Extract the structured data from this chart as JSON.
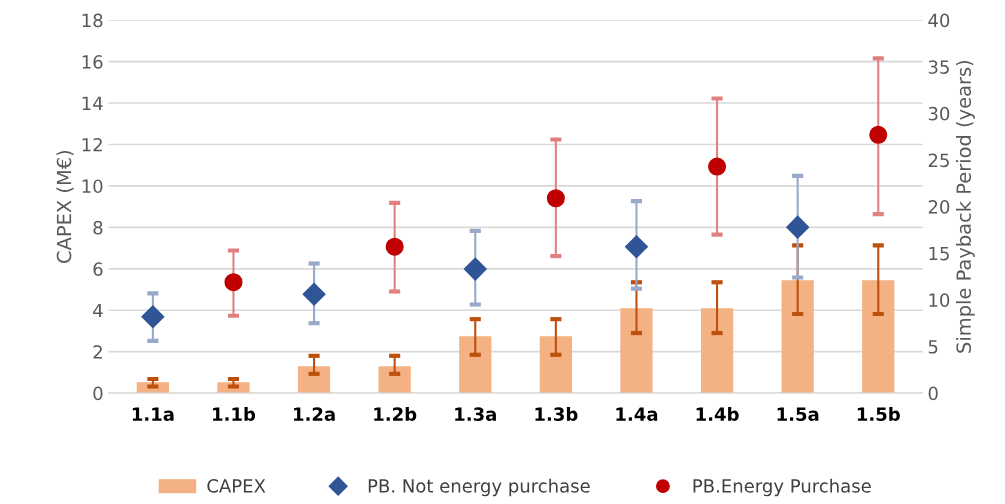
{
  "chart_data": {
    "type": "bar",
    "ylabel": "CAPEX (M€)",
    "y2label": "Simple Payback Period (years)",
    "categories": [
      "1.1a",
      "1.1b",
      "1.2a",
      "1.2b",
      "1.3a",
      "1.3b",
      "1.4a",
      "1.4b",
      "1.5a",
      "1.5b"
    ],
    "series": [
      {
        "name": "CAPEX",
        "color": "#f4b183",
        "values": [
          0.53,
          0.53,
          1.3,
          1.3,
          2.75,
          2.75,
          4.1,
          4.1,
          5.45,
          5.45
        ],
        "errors": [
          [
            0.32,
            0.68
          ],
          [
            0.32,
            0.68
          ],
          [
            0.93,
            1.8
          ],
          [
            0.93,
            1.8
          ],
          [
            1.85,
            3.57
          ],
          [
            1.85,
            3.57
          ],
          [
            2.9,
            5.35
          ],
          [
            2.9,
            5.35
          ],
          [
            3.82,
            7.13
          ],
          [
            3.82,
            7.13
          ]
        ]
      },
      {
        "name": "PB. Not energy purchase",
        "type": "scatter",
        "axis": "y2",
        "marker": "diamond",
        "color": "#2f5597",
        "values": [
          8.2,
          null,
          10.6,
          null,
          13.3,
          null,
          15.7,
          null,
          17.8,
          null
        ],
        "errors": [
          [
            5.6,
            10.7
          ],
          null,
          [
            7.5,
            13.9
          ],
          null,
          [
            9.5,
            17.4
          ],
          null,
          [
            11.2,
            20.6
          ],
          null,
          [
            12.4,
            23.3
          ],
          null
        ]
      },
      {
        "name": "PB.Energy Purchase",
        "type": "scatter",
        "axis": "y2",
        "marker": "circle",
        "color": "#c00000",
        "values": [
          null,
          11.9,
          null,
          15.7,
          null,
          20.9,
          null,
          24.3,
          null,
          27.7
        ],
        "errors": [
          null,
          [
            8.3,
            15.3
          ],
          null,
          [
            10.9,
            20.4
          ],
          null,
          [
            14.7,
            27.2
          ],
          null,
          [
            17.0,
            31.6
          ],
          null,
          [
            19.2,
            35.9
          ]
        ]
      }
    ],
    "ylim": [
      0,
      18
    ],
    "yticks": [
      0,
      2,
      4,
      6,
      8,
      10,
      12,
      14,
      16,
      18
    ],
    "y2lim": [
      0,
      40
    ],
    "y2ticks": [
      0,
      5,
      10,
      15,
      20,
      25,
      30,
      35,
      40
    ],
    "grid": "y",
    "legend": "bottom"
  }
}
